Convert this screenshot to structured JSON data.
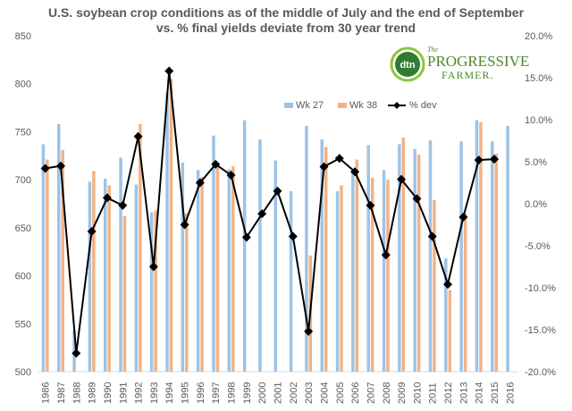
{
  "colors": {
    "wk27": "#9dc3e6",
    "wk38": "#f4b183",
    "dev": "#000000",
    "axis_text": "#595959",
    "grid": "#d9d9d9",
    "logo_green": "#4a8a2a"
  },
  "logo": {
    "mark": "dtn",
    "the": "The",
    "name_line1": "PROGRESSIVE",
    "name_line2": "FARMER."
  },
  "chart_data": {
    "type": "bar",
    "title": "U.S. soybean crop conditions as of the middle of July and the end of September",
    "subtitle": "vs. % final yields deviate from 30 year trend",
    "categories": [
      "1986",
      "1987",
      "1988",
      "1989",
      "1990",
      "1991",
      "1992",
      "1993",
      "1994",
      "1995",
      "1996",
      "1997",
      "1998",
      "1999",
      "2000",
      "2001",
      "2002",
      "2003",
      "2004",
      "2005",
      "2006",
      "2007",
      "2008",
      "2009",
      "2010",
      "2011",
      "2012",
      "2013",
      "2014",
      "2015",
      "2016"
    ],
    "series": [
      {
        "name": "Wk 27",
        "type": "bar",
        "axis": "left",
        "values": [
          737,
          758,
          543,
          698,
          701,
          723,
          695,
          666,
          790,
          718,
          710,
          746,
          711,
          762,
          742,
          720,
          688,
          756,
          742,
          688,
          708,
          736,
          710,
          737,
          732,
          741,
          618,
          740,
          762,
          740,
          756
        ]
      },
      {
        "name": "Wk 38",
        "type": "bar",
        "axis": "left",
        "values": [
          721,
          731,
          null,
          709,
          694,
          662,
          758,
          668,
          805,
          665,
          703,
          716,
          714,
          null,
          null,
          null,
          null,
          621,
          734,
          694,
          721,
          702,
          700,
          744,
          726,
          679,
          585,
          665,
          760,
          727,
          null
        ]
      },
      {
        "name": "% dev",
        "type": "line",
        "axis": "right",
        "values": [
          4.2,
          4.5,
          -17.8,
          -3.3,
          0.7,
          -0.2,
          8.0,
          -7.5,
          15.8,
          -2.5,
          2.5,
          4.7,
          3.4,
          -4.0,
          -1.2,
          1.5,
          -3.9,
          -15.2,
          4.4,
          5.4,
          3.8,
          -0.2,
          -6.1,
          2.9,
          0.6,
          -3.9,
          -9.6,
          -1.6,
          5.2,
          5.3,
          null
        ]
      }
    ],
    "ylim": [
      500,
      850
    ],
    "yticks": [
      "500",
      "550",
      "600",
      "650",
      "700",
      "750",
      "800",
      "850"
    ],
    "y2lim": [
      -20,
      20
    ],
    "y2ticks": [
      "-20.0%",
      "-15.0%",
      "-10.0%",
      "-5.0%",
      "0.0%",
      "5.0%",
      "10.0%",
      "15.0%",
      "20.0%"
    ],
    "legend_position": "top-right",
    "grid": false
  }
}
